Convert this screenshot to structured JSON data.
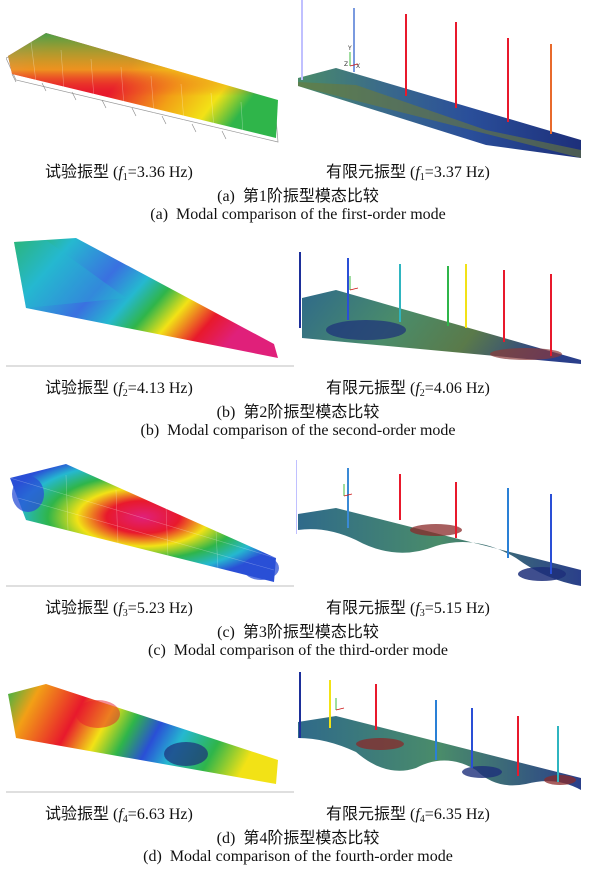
{
  "panels": [
    {
      "test_mode_label": "试验振型",
      "test_freq": "3.36 Hz",
      "fe_mode_label": "有限元振型",
      "fe_freq": "3.37 Hz",
      "sub_index": "1",
      "caption_cn_letter": "(a)",
      "caption_cn": "第1阶振型模态比较",
      "caption_en_letter": "(a)",
      "caption_en": "Modal comparison of the first-order mode"
    },
    {
      "test_mode_label": "试验振型",
      "test_freq": "4.13 Hz",
      "fe_mode_label": "有限元振型",
      "fe_freq": "4.06 Hz",
      "sub_index": "2",
      "caption_cn_letter": "(b)",
      "caption_cn": "第2阶振型模态比较",
      "caption_en_letter": "(b)",
      "caption_en": "Modal comparison of the second-order mode"
    },
    {
      "test_mode_label": "试验振型",
      "test_freq": "5.23 Hz",
      "fe_mode_label": "有限元振型",
      "fe_freq": "5.15 Hz",
      "sub_index": "3",
      "caption_cn_letter": "(c)",
      "caption_cn": "第3阶振型模态比较",
      "caption_en_letter": "(c)",
      "caption_en": "Modal comparison of the third-order mode"
    },
    {
      "test_mode_label": "试验振型",
      "test_freq": "6.63 Hz",
      "fe_mode_label": "有限元振型",
      "fe_freq": "6.35 Hz",
      "sub_index": "4",
      "caption_cn_letter": "(d)",
      "caption_cn": "第4阶振型模态比较",
      "caption_en_letter": "(d)",
      "caption_en": "Modal comparison of the fourth-order mode"
    }
  ],
  "axis_labels": {
    "y": "Y",
    "z": "Z",
    "x": "X"
  },
  "colors": {
    "red": "#e8192c",
    "magenta": "#e0207a",
    "yellow": "#f2e216",
    "green": "#2fb54a",
    "cyan": "#25b8d0",
    "blue": "#2a4fd6",
    "fe_base": "#4a8c6a",
    "fe_dark": "#1d2f7a"
  }
}
